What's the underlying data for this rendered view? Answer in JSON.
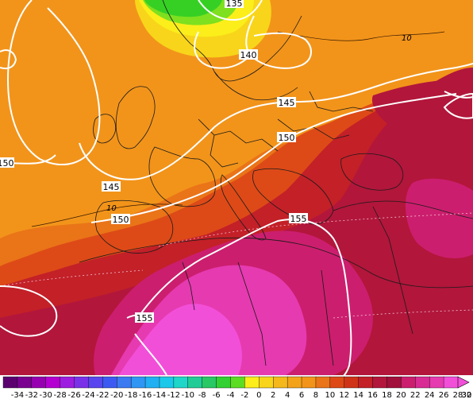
{
  "map": {
    "colors": {
      "orange": "#f2941a",
      "orange_dark": "#ea7418",
      "red_orange": "#dd4a17",
      "red": "#c32028",
      "crimson": "#b2163b",
      "magenta_dark": "#cc1e6e",
      "magenta": "#e63ab0",
      "magenta_bright": "#f24fd9",
      "yellow": "#f8d51a",
      "yellow_light": "#fbee1a",
      "green": "#36d025",
      "green_light": "#7ee01f"
    },
    "contours": [
      {
        "label": "135"
      },
      {
        "label": "140"
      },
      {
        "label": "145"
      },
      {
        "label": "145"
      },
      {
        "label": "150"
      },
      {
        "label": "150"
      },
      {
        "label": "150"
      },
      {
        "label": "155"
      },
      {
        "label": "155"
      }
    ],
    "isotherm_labels": [
      "10",
      "10"
    ]
  },
  "colorbar": {
    "ticks": [
      "-34",
      "-32",
      "-30",
      "-28",
      "-26",
      "-24",
      "-22",
      "-20",
      "-18",
      "-16",
      "-14",
      "-12",
      "-10",
      "-8",
      "-6",
      "-4",
      "-2",
      "0",
      "2",
      "4",
      "6",
      "8",
      "10",
      "12",
      "14",
      "16",
      "18",
      "20",
      "22",
      "24",
      "26",
      "28",
      "30",
      "32"
    ],
    "colors": [
      "#5c0070",
      "#7a0090",
      "#9600b0",
      "#b400d0",
      "#9d1ee0",
      "#7a32e8",
      "#5a46ee",
      "#3c5af2",
      "#3c7af2",
      "#2f96f4",
      "#23b0f2",
      "#1cc8ea",
      "#1fd6c8",
      "#22cc96",
      "#28c864",
      "#32d032",
      "#5cdc22",
      "#fbee1a",
      "#f8d51a",
      "#f5b81a",
      "#f2a31a",
      "#f2941a",
      "#ea7418",
      "#dd4a17",
      "#cf3418",
      "#c32028",
      "#b2163b",
      "#a0103a",
      "#cc1e6e",
      "#d92b94",
      "#e63ab0",
      "#f24fd9"
    ]
  }
}
